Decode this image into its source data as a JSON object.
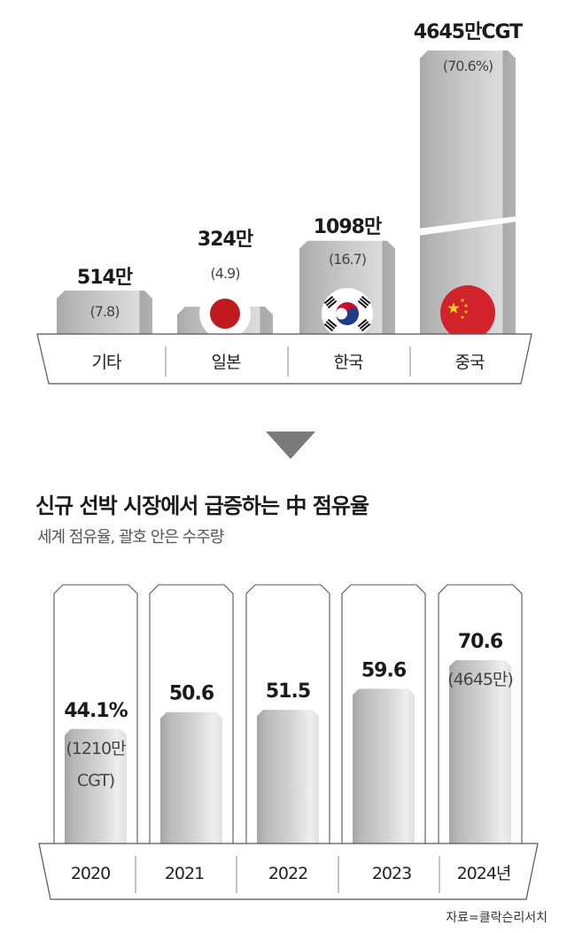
{
  "chart_data": [
    {
      "type": "bar",
      "categories": [
        "기타",
        "일본",
        "한국",
        "중국"
      ],
      "values": [
        7.8,
        4.9,
        16.7,
        70.6
      ],
      "value_labels": [
        "514만",
        "324만",
        "1098만",
        "4645만CGT"
      ],
      "share_labels": [
        "(7.8)",
        "(4.9)",
        "(16.7)",
        "(70.6%)"
      ],
      "orders_unit": "만CGT",
      "orders": [
        514,
        324,
        1098,
        4645
      ],
      "broken_axis_category": "중국",
      "flags": [
        "",
        "japan-flag",
        "korea-flag",
        "china-flag"
      ],
      "grid": false
    },
    {
      "type": "bar",
      "title": "신규 선박 시장에서 급증하는 中 점유율",
      "subtitle": "세계 점유율, 괄호 안은 수주량",
      "categories": [
        "2020",
        "2021",
        "2022",
        "2023",
        "2024년"
      ],
      "values": [
        44.1,
        50.6,
        51.5,
        59.6,
        70.6
      ],
      "value_labels": [
        "44.1%",
        "50.6",
        "51.5",
        "59.6",
        "70.6"
      ],
      "extra_labels": [
        [
          "(1210만",
          "CGT)"
        ],
        [],
        [],
        [],
        [
          "(4645만)"
        ]
      ],
      "ylim": [
        0,
        100
      ],
      "grid": false
    }
  ],
  "divider_arrow": "triangle-down-icon",
  "source": "자료=클락슨리서치",
  "colors": {
    "bar": "#bdbdbd",
    "bar_edge": "#9a9a9a",
    "arrow": "#7a7a7a",
    "text": "#1a1a1a",
    "japan_red": "#c0191e",
    "china_red": "#d2232a",
    "korea_blue": "#1f3d8a",
    "china_star": "#f7d117"
  }
}
